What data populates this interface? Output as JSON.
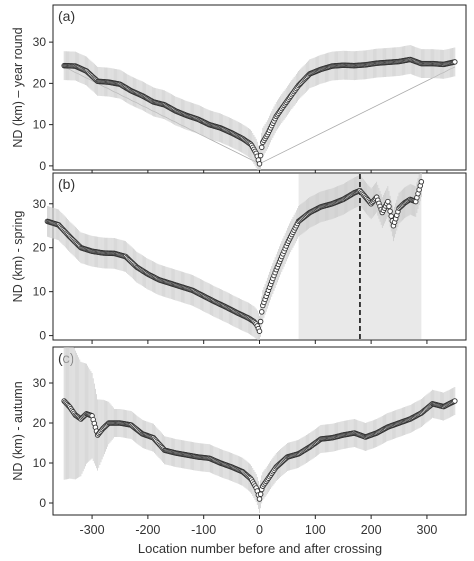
{
  "figure": {
    "xlabel": "Location number before and after crossing",
    "xlim": [
      -370,
      370
    ],
    "xticks": [
      -300,
      -200,
      -100,
      0,
      100,
      200,
      300
    ]
  },
  "chart_data": [
    {
      "type": "scatter",
      "panel_label": "(a)",
      "ylabel": "ND (km) – year round",
      "ylim": [
        -1,
        39
      ],
      "yticks": [
        0,
        10,
        20,
        30
      ],
      "x_range": [
        -350,
        350
      ],
      "mean_curve": {
        "x": [
          -350,
          -330,
          -310,
          -290,
          -270,
          -250,
          -230,
          -210,
          -190,
          -170,
          -150,
          -130,
          -110,
          -90,
          -70,
          -50,
          -30,
          -15,
          -5,
          0,
          5,
          15,
          30,
          50,
          70,
          90,
          110,
          130,
          150,
          170,
          190,
          210,
          230,
          250,
          270,
          290,
          310,
          330,
          350
        ],
        "y": [
          24.3,
          24.2,
          23,
          20.5,
          20.3,
          19.8,
          18.2,
          17,
          15.5,
          14.8,
          13.3,
          12.2,
          11.3,
          10,
          9.2,
          8,
          6.6,
          5.2,
          2.8,
          0.5,
          5.5,
          7.8,
          12,
          15.8,
          19.5,
          22.3,
          23.4,
          24.2,
          24.4,
          24.3,
          24.5,
          24.9,
          25.1,
          25.3,
          25.8,
          24.8,
          24.8,
          24.6,
          25.2
        ]
      },
      "band_halfwidth": 3.5,
      "guide_lines": [
        {
          "from": [
            -350,
            24
          ],
          "to": [
            0,
            0.5
          ]
        },
        {
          "from": [
            0,
            0.5
          ],
          "to": [
            350,
            24
          ]
        }
      ]
    },
    {
      "type": "scatter",
      "panel_label": "(b)",
      "ylabel": "ND (km) - spring",
      "ylim": [
        -1,
        37
      ],
      "yticks": [
        0,
        10,
        20,
        30
      ],
      "x_range": [
        -380,
        290
      ],
      "shaded_region": [
        70,
        290
      ],
      "vline_dashed": 180,
      "mean_curve": {
        "x": [
          -380,
          -360,
          -340,
          -320,
          -300,
          -280,
          -260,
          -240,
          -220,
          -200,
          -180,
          -160,
          -140,
          -120,
          -100,
          -80,
          -60,
          -40,
          -20,
          -10,
          -5,
          0,
          5,
          15,
          30,
          50,
          70,
          90,
          110,
          130,
          150,
          170,
          180,
          190,
          200,
          210,
          220,
          230,
          240,
          250,
          260,
          270,
          280,
          290
        ],
        "y": [
          26,
          25.2,
          22.5,
          20,
          19.2,
          18.8,
          18.7,
          18,
          15.6,
          14,
          12.7,
          11.9,
          11.1,
          10.3,
          9,
          7.7,
          6.5,
          5.2,
          4,
          3.2,
          2.5,
          1,
          6.5,
          10,
          15,
          21,
          26,
          28,
          29.3,
          30,
          31,
          32.5,
          33,
          31.5,
          30,
          31.5,
          28,
          30.5,
          25,
          29,
          30.2,
          31,
          30.5,
          35
        ]
      },
      "band_halfwidth": 3.5
    },
    {
      "type": "scatter",
      "panel_label": "(c)",
      "ylabel": "ND (km) - autumn",
      "ylim": [
        -3,
        39
      ],
      "yticks": [
        0,
        10,
        20,
        30
      ],
      "x_range": [
        -350,
        350
      ],
      "mean_curve": {
        "x": [
          -350,
          -340,
          -330,
          -320,
          -310,
          -300,
          -290,
          -280,
          -270,
          -250,
          -230,
          -210,
          -190,
          -170,
          -150,
          -130,
          -110,
          -90,
          -70,
          -50,
          -30,
          -15,
          -5,
          0,
          5,
          15,
          30,
          50,
          70,
          90,
          110,
          130,
          150,
          170,
          190,
          210,
          230,
          250,
          270,
          290,
          310,
          330,
          350
        ],
        "y": [
          25.5,
          24,
          22,
          21,
          22.3,
          21.8,
          17,
          18.7,
          20,
          20,
          19.5,
          17.3,
          16.3,
          13.2,
          12.5,
          12,
          11.5,
          11.2,
          10,
          9,
          7.8,
          6,
          3.5,
          1,
          4,
          6,
          9,
          11.5,
          12.3,
          14,
          16,
          16.3,
          17,
          17.5,
          16.5,
          17.5,
          19,
          20,
          21,
          22.5,
          24.8,
          24.1,
          25.5
        ]
      },
      "band_halfwidth": 3.5
    }
  ]
}
